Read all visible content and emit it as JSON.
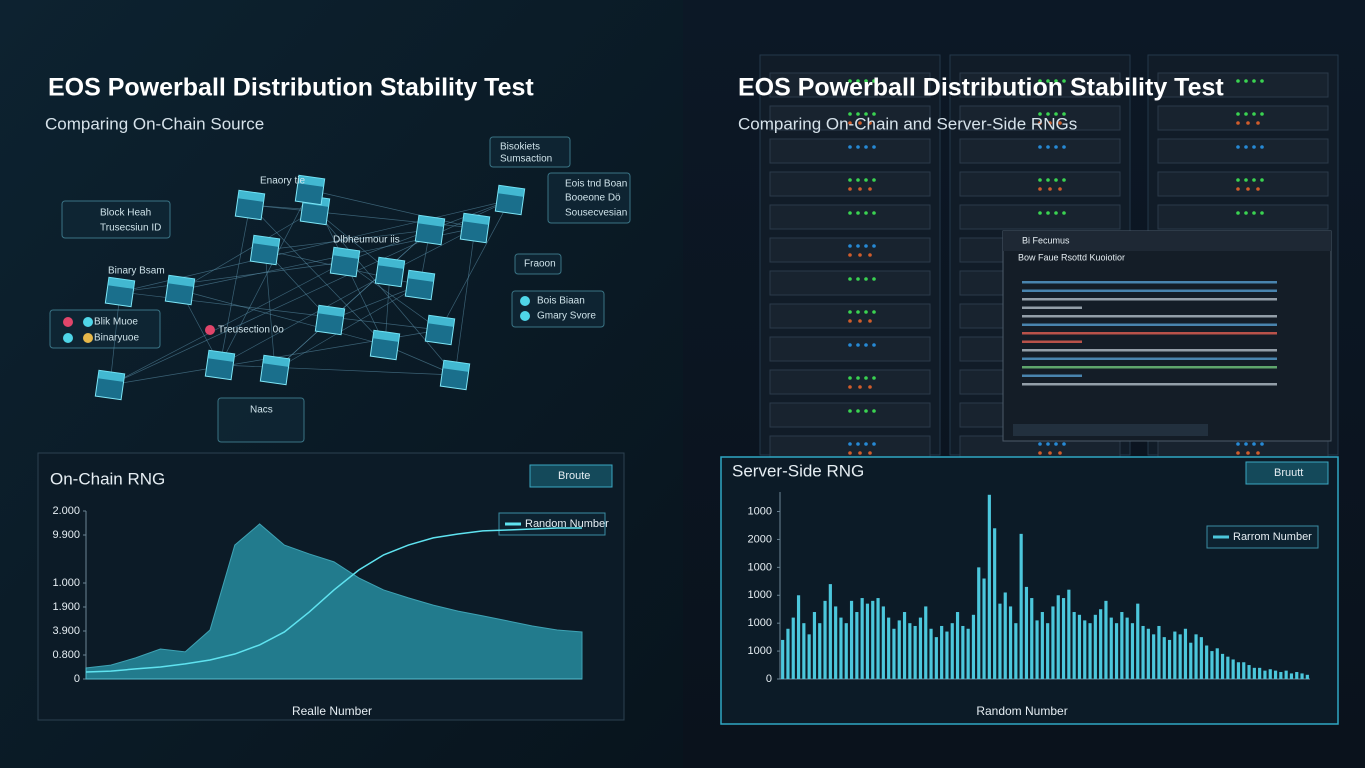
{
  "left_title": "EOS Powerball Distribution Stability Test",
  "left_subtitle": "Comparing On-Chain Source",
  "right_title": "EOS Powerball Distribution Stability Test",
  "right_subtitle": "Comparing On-Chain and Server-Side RNGs",
  "network": {
    "labels": [
      "Block Heah",
      "Trusecsiun ID",
      "Binary Bsam",
      "Blik Muoe",
      "Binaryuoe",
      "Treusection 0o",
      "Bisokiets",
      "Sumsaction",
      "Eois tnd Boan",
      "Booeone Dö",
      "Sousecvesian",
      "Bois Biaan",
      "Gmary Svore",
      "Enaory tie",
      "Dlbheumour iis",
      "Fraoon",
      "Nacs"
    ]
  },
  "terminal": {
    "title": "Bi Fecumus",
    "header": "Bow Faue Rsottd Kuoiotior"
  },
  "chart_data": [
    {
      "type": "line",
      "title": "On-Chain RNG",
      "button": "Broute",
      "xlabel": "Realle Number",
      "x": [
        0,
        5,
        10,
        15,
        20,
        25,
        30,
        35,
        40,
        45,
        50,
        55,
        60,
        65,
        70,
        75,
        80,
        85,
        90,
        95,
        100
      ],
      "xlim": [
        0,
        100
      ],
      "ylim": [
        0,
        7
      ],
      "yticks": [
        {
          "value": 7,
          "label": "2.000"
        },
        {
          "value": 6,
          "label": "9.900"
        },
        {
          "value": 4,
          "label": "1.000"
        },
        {
          "value": 3,
          "label": "1.900"
        },
        {
          "value": 2,
          "label": "3.900"
        },
        {
          "value": 1,
          "label": "0.800"
        },
        0
      ],
      "series": [
        {
          "color": "#2a9bb0",
          "fill": true,
          "values": [
            0.46,
            0.58,
            0.88,
            1.25,
            1.13,
            2.04,
            5.58,
            6.46,
            5.58,
            5.21,
            4.88,
            4.21,
            3.71,
            3.38,
            3.08,
            2.83,
            2.63,
            2.42,
            2.21,
            2.04,
            1.96
          ]
        },
        {
          "name": "Random Number",
          "color": "#5fe3f0",
          "values": [
            0.29,
            0.33,
            0.42,
            0.5,
            0.63,
            0.79,
            1.04,
            1.42,
            1.96,
            2.79,
            3.71,
            4.54,
            5.17,
            5.58,
            5.88,
            6.04,
            6.17,
            6.21,
            6.25,
            6.29,
            6.29
          ]
        }
      ]
    },
    {
      "type": "bar",
      "title": "Server-Side RNG",
      "button": "Bruutt",
      "xlabel": "Random Number",
      "ylim": [
        0,
        6.7
      ],
      "yticks": [
        {
          "value": 6,
          "label": "1000"
        },
        {
          "value": 5,
          "label": "2000"
        },
        {
          "value": 4,
          "label": "1000"
        },
        {
          "value": 3,
          "label": "1000"
        },
        {
          "value": 2,
          "label": "1000"
        },
        {
          "value": 1,
          "label": "1000"
        },
        0
      ],
      "series": [
        {
          "name": "Rarrom Number",
          "color": "#4cc7dc",
          "values": [
            1.4,
            1.8,
            2.2,
            3.0,
            2.0,
            1.6,
            2.4,
            2.0,
            2.8,
            3.4,
            2.6,
            2.2,
            2.0,
            2.8,
            2.4,
            2.9,
            2.7,
            2.8,
            2.9,
            2.6,
            2.2,
            1.8,
            2.1,
            2.4,
            2.0,
            1.9,
            2.2,
            2.6,
            1.8,
            1.5,
            1.9,
            1.7,
            2.0,
            2.4,
            1.9,
            1.8,
            2.3,
            4.0,
            3.6,
            6.6,
            5.4,
            2.7,
            3.1,
            2.6,
            2.0,
            5.2,
            3.3,
            2.9,
            2.1,
            2.4,
            2.0,
            2.6,
            3.0,
            2.9,
            3.2,
            2.4,
            2.3,
            2.1,
            2.0,
            2.3,
            2.5,
            2.8,
            2.2,
            2.0,
            2.4,
            2.2,
            2.0,
            2.7,
            1.9,
            1.8,
            1.6,
            1.9,
            1.5,
            1.4,
            1.7,
            1.6,
            1.8,
            1.3,
            1.6,
            1.5,
            1.2,
            1.0,
            1.1,
            0.9,
            0.8,
            0.7,
            0.6,
            0.6,
            0.5,
            0.4,
            0.4,
            0.3,
            0.35,
            0.3,
            0.25,
            0.3,
            0.2,
            0.25,
            0.2,
            0.15
          ]
        }
      ]
    }
  ]
}
